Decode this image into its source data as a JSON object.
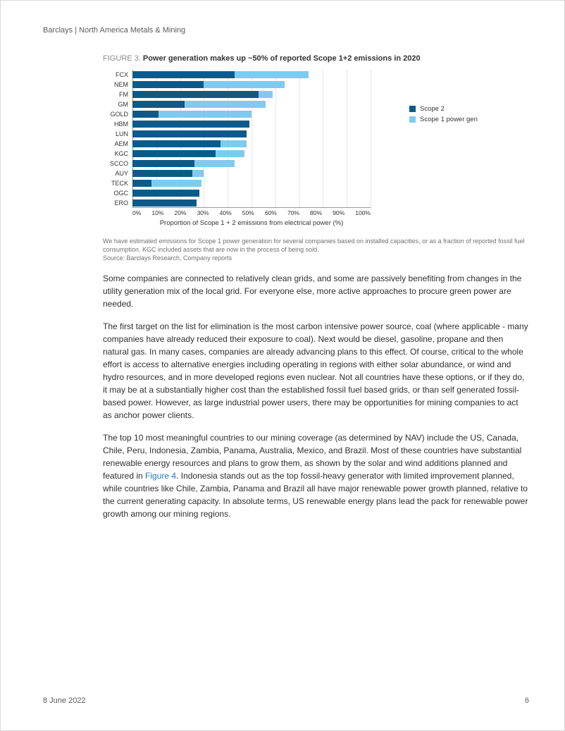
{
  "header": {
    "text": "Barclays | North America Metals & Mining"
  },
  "figure": {
    "label": "FIGURE 3.",
    "title": "Power generation makes up ~50% of reported Scope 1+2 emissions in 2020",
    "chart": {
      "type": "stacked-horizontal-bar",
      "xlim": [
        0,
        100
      ],
      "xtick_step": 10,
      "xticks": [
        "0%",
        "10%",
        "20%",
        "30%",
        "40%",
        "50%",
        "60%",
        "70%",
        "80%",
        "90%",
        "100%"
      ],
      "xlabel": "Proportion of Scope 1 + 2 emissions from electrical power (%)",
      "series": [
        {
          "name": "Scope 2",
          "color": "#0b5a8a"
        },
        {
          "name": "Scope 1 power gen",
          "color": "#7ecbef"
        }
      ],
      "categories": [
        {
          "label": "FCX",
          "scope2": 43,
          "scope1pg": 31
        },
        {
          "label": "NEM",
          "scope2": 30,
          "scope1pg": 34
        },
        {
          "label": "FM",
          "scope2": 53,
          "scope1pg": 6
        },
        {
          "label": "GM",
          "scope2": 22,
          "scope1pg": 34
        },
        {
          "label": "GOLD",
          "scope2": 11,
          "scope1pg": 39
        },
        {
          "label": "HBM",
          "scope2": 49,
          "scope1pg": 0
        },
        {
          "label": "LUN",
          "scope2": 48,
          "scope1pg": 0
        },
        {
          "label": "AEM",
          "scope2": 37,
          "scope1pg": 11
        },
        {
          "label": "KGC",
          "scope2": 35,
          "scope1pg": 12
        },
        {
          "label": "SCCO",
          "scope2": 26,
          "scope1pg": 17
        },
        {
          "label": "AUY",
          "scope2": 25,
          "scope1pg": 5
        },
        {
          "label": "TECK",
          "scope2": 8,
          "scope1pg": 21
        },
        {
          "label": "OGC",
          "scope2": 28,
          "scope1pg": 0
        },
        {
          "label": "ERO",
          "scope2": 27,
          "scope1pg": 0
        }
      ],
      "background_color": "#ffffff",
      "grid_color": "#e6e6e6",
      "label_fontsize": 9,
      "axis_fontsize": 9
    },
    "note": "We have estimated emissions for Scope 1 power generation for several companies based on installed capacities, or as a fraction of reported fossil fuel consumption. KGC included assets that are now in the process of being sold.",
    "source": "Source: Barclays Research, Company reports"
  },
  "body": {
    "p1": "Some companies are connected to relatively clean grids, and some are passively benefiting from changes in the utility generation mix of the local grid. For everyone else, more active approaches to procure green power are needed.",
    "p2": "The first target on the list for elimination is the most carbon intensive power source, coal (where applicable - many companies have already reduced their exposure to coal). Next would be diesel, gasoline, propane and then natural gas. In many cases, companies are already advancing plans to this effect. Of course, critical to the whole effort is access to alternative energies including operating in regions with either solar abundance, or wind and hydro resources, and in more developed regions even nuclear. Not all countries have these options, or if they do, it may be at a substantially higher cost than the established fossil fuel based grids, or than self generated fossil-based power. However, as large industrial power users, there may be opportunities for mining companies to act as anchor power clients.",
    "p3a": "The top 10 most meaningful countries to our mining coverage (as determined by NAV) include the US, Canada, Chile, Peru, Indonesia, Zambia, Panama, Australia, Mexico, and Brazil. Most of these countries have substantial renewable energy resources and plans to grow them, as shown by the solar and wind additions planned and featured in ",
    "figref": "Figure 4",
    "p3b": ". Indonesia stands out as the top fossil-heavy generator with limited improvement planned, while countries like Chile, Zambia, Panama and Brazil all have major renewable power growth planned, relative to the current generating capacity. In absolute terms, US renewable energy plans lead the pack for renewable power growth among our mining regions."
  },
  "footer": {
    "date": "8 June 2022",
    "pagenum": "6"
  }
}
